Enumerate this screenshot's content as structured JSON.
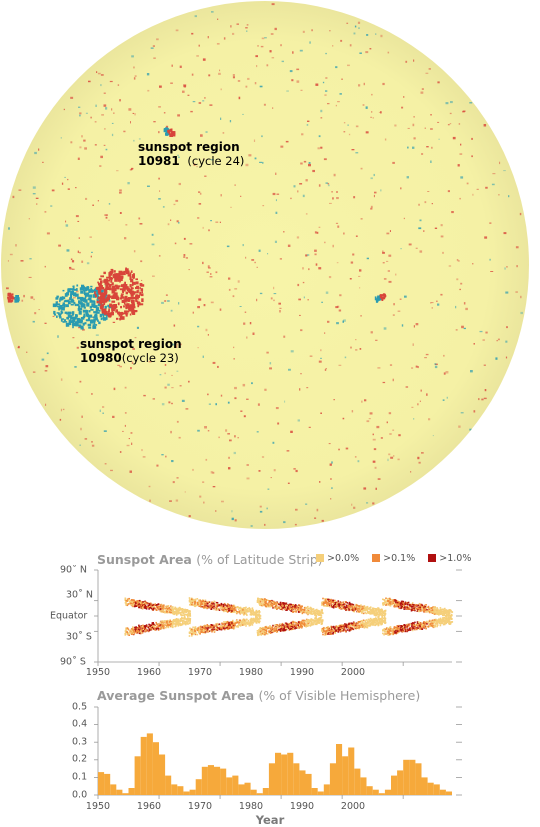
{
  "sun_labels": [
    {
      "title": "sunspot region",
      "number": "10981",
      "cycle": "(cycle 24)"
    },
    {
      "title": "sunspot region",
      "number": "10980",
      "cycle": "(cycle 23)"
    }
  ],
  "colors": {
    "disk": "#f6f2a4",
    "disk_edge": "#ece7a0",
    "positive_polarity": "#d8453a",
    "negative_polarity": "#2a9bb0",
    "level_1": "#f5cf7a",
    "level_2": "#f08a3a",
    "level_3": "#b01010",
    "area_fill": "#f6a93b"
  },
  "chart_data": [
    {
      "type": "heatmap",
      "title": "Sunspot Area",
      "subtitle": "(% of Latitude Strip)",
      "legend": [
        ">0.0%",
        ">0.1%",
        ">1.0%"
      ],
      "legend_placement": "top-right",
      "y_tick_labels": [
        "90˚ N",
        "30˚ N",
        "Equator",
        "30˚ S",
        "90˚ S"
      ],
      "y_ticks": [
        90,
        30,
        0,
        -30,
        -90
      ],
      "ylim": [
        -90,
        90
      ],
      "xlim": [
        1950,
        2008
      ],
      "x_ticks": [
        1950,
        1960,
        1970,
        1980,
        1990,
        2000
      ],
      "cycles": [
        {
          "start": 1954.3,
          "end": 1965.0,
          "peak": 1958.0
        },
        {
          "start": 1964.7,
          "end": 1976.5,
          "peak": 1969.5
        },
        {
          "start": 1976.0,
          "end": 1986.8,
          "peak": 1980.5
        },
        {
          "start": 1986.5,
          "end": 1997.0,
          "peak": 1990.0
        },
        {
          "start": 1996.5,
          "end": 2008.0,
          "peak": 2001.0
        }
      ]
    },
    {
      "type": "area",
      "title": "Average Sunspot Area",
      "subtitle": "(% of Visible Hemisphere)",
      "xlabel": "Year",
      "ylabel": "",
      "xlim": [
        1950,
        2008
      ],
      "ylim": [
        0,
        0.5
      ],
      "x_ticks": [
        1950,
        1960,
        1970,
        1980,
        1990,
        2000
      ],
      "y_ticks": [
        0.0,
        0.1,
        0.2,
        0.3,
        0.4,
        0.5
      ],
      "y_tick_labels": [
        "0.0",
        "0.1",
        "0.2",
        "0.3",
        "0.4",
        "0.5"
      ],
      "x": [
        1950,
        1951,
        1952,
        1953,
        1954,
        1955,
        1956,
        1957,
        1958,
        1959,
        1960,
        1961,
        1962,
        1963,
        1964,
        1965,
        1966,
        1967,
        1968,
        1969,
        1970,
        1971,
        1972,
        1973,
        1974,
        1975,
        1976,
        1977,
        1978,
        1979,
        1980,
        1981,
        1982,
        1983,
        1984,
        1985,
        1986,
        1987,
        1988,
        1989,
        1990,
        1991,
        1992,
        1993,
        1994,
        1995,
        1996,
        1997,
        1998,
        1999,
        2000,
        2001,
        2002,
        2003,
        2004,
        2005,
        2006,
        2007
      ],
      "values": [
        0.13,
        0.12,
        0.06,
        0.03,
        0.01,
        0.04,
        0.22,
        0.33,
        0.35,
        0.3,
        0.23,
        0.11,
        0.06,
        0.05,
        0.02,
        0.03,
        0.09,
        0.16,
        0.17,
        0.16,
        0.15,
        0.1,
        0.11,
        0.06,
        0.07,
        0.03,
        0.01,
        0.04,
        0.18,
        0.24,
        0.23,
        0.24,
        0.18,
        0.14,
        0.12,
        0.04,
        0.02,
        0.06,
        0.18,
        0.29,
        0.22,
        0.27,
        0.15,
        0.1,
        0.05,
        0.03,
        0.01,
        0.03,
        0.11,
        0.14,
        0.2,
        0.2,
        0.18,
        0.1,
        0.07,
        0.06,
        0.03,
        0.02
      ]
    }
  ],
  "heat_y_tick_labels": [
    "90˚ N",
    "30˚ N",
    "Equator",
    "30˚ S",
    "90˚ S"
  ],
  "year_tick_labels": [
    "1950",
    "1960",
    "1970",
    "1980",
    "1990",
    "2000"
  ],
  "area_y_tick_labels": [
    "0.5",
    "0.4",
    "0.3",
    "0.2",
    "0.1",
    "0.0"
  ]
}
